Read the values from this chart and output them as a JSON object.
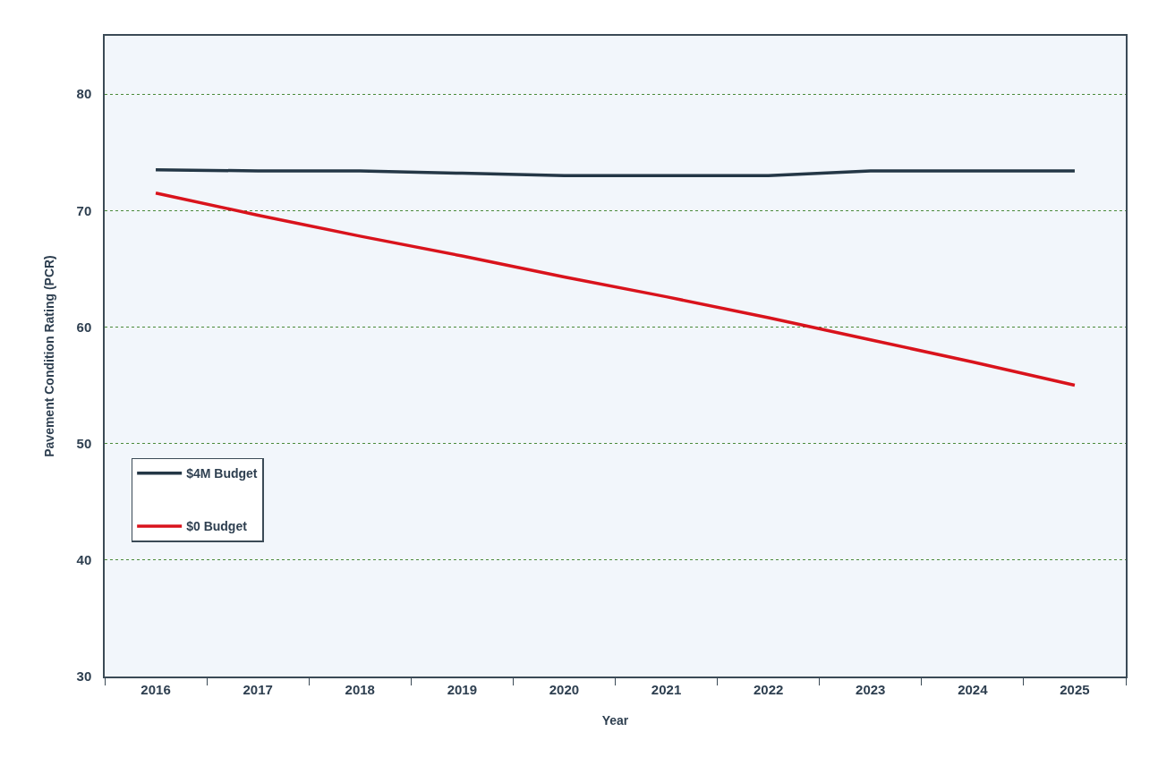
{
  "chart_data": {
    "type": "line",
    "xlabel": "Year",
    "ylabel": "Pavement Condition Rating (PCR)",
    "categories": [
      "2016",
      "2017",
      "2018",
      "2019",
      "2020",
      "2021",
      "2022",
      "2023",
      "2024",
      "2025"
    ],
    "series": [
      {
        "name": "$4M Budget",
        "color": "#243746",
        "values": [
          73.5,
          73.4,
          73.4,
          73.2,
          73.0,
          73.0,
          73.0,
          73.4,
          73.4,
          73.4
        ]
      },
      {
        "name": "$0 Budget",
        "color": "#d9131c",
        "values": [
          71.5,
          69.6,
          67.8,
          66.1,
          64.3,
          62.6,
          60.8,
          58.9,
          57.0,
          55.0
        ]
      }
    ],
    "ylim": [
      30,
      85
    ],
    "yticks": [
      30,
      40,
      50,
      60,
      70,
      80
    ],
    "grid": "y",
    "legend": "bottom left",
    "line_style": "solid"
  }
}
